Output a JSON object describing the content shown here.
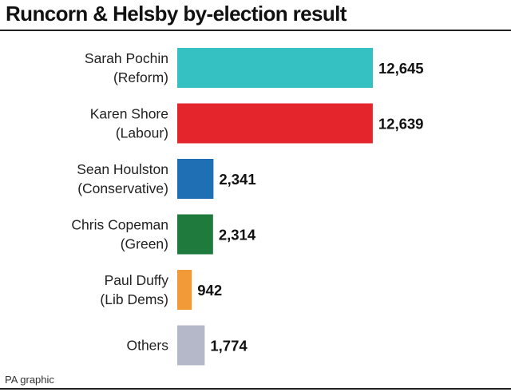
{
  "chart_data": {
    "type": "bar",
    "orientation": "horizontal",
    "title": "Runcorn & Helsby by-election result",
    "categories": [
      [
        "Sarah Pochin",
        "(Reform)"
      ],
      [
        "Karen Shore",
        "(Labour)"
      ],
      [
        "Sean Houlston",
        "(Conservative)"
      ],
      [
        "Chris Copeman",
        "(Green)"
      ],
      [
        "Paul Duffy",
        "(Lib Dems)"
      ],
      [
        "Others"
      ]
    ],
    "values": [
      12645,
      12639,
      2341,
      2314,
      942,
      1774
    ],
    "value_labels": [
      "12,645",
      "12,639",
      "2,341",
      "2,314",
      "942",
      "1,774"
    ],
    "colors": [
      "#35c1c1",
      "#e4262c",
      "#1f6fb5",
      "#1f7a3e",
      "#f39a38",
      "#b4b8c8"
    ],
    "xlim": [
      0,
      12645
    ],
    "grid": false,
    "legend": "none"
  },
  "footer": {
    "source": "PA graphic"
  }
}
